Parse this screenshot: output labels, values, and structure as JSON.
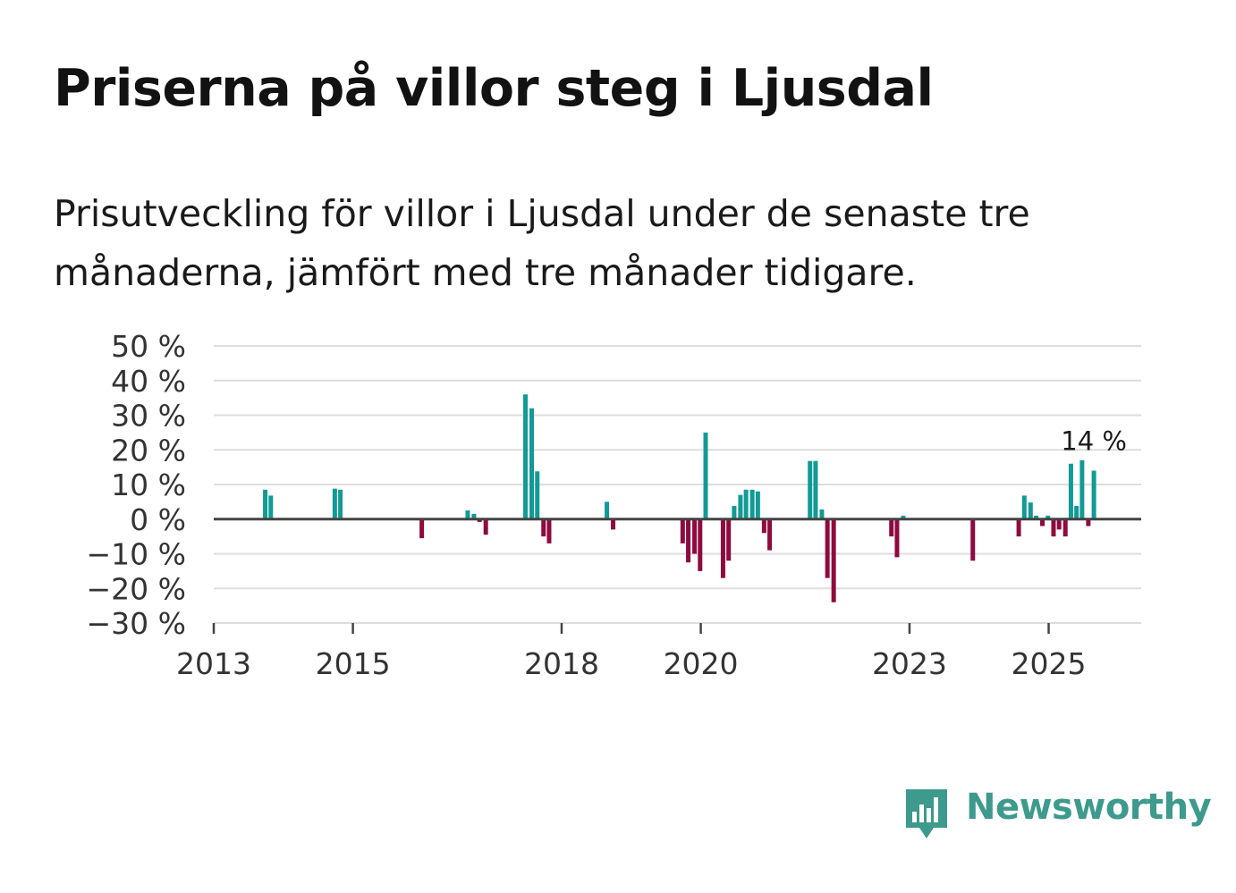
{
  "title": "Priserna på villor steg i Ljusdal",
  "subtitle": "Prisutveckling för villor i Ljusdal under de senaste tre månaderna, jämfört med tre månader tidigare.",
  "brand": {
    "name": "Newsworthy",
    "color": "#3d9a8c",
    "icon": "bar-chart-icon"
  },
  "colors": {
    "positive": "#129a96",
    "negative": "#8f0a3f",
    "grid": "#dddddd",
    "zero": "#444444"
  },
  "chart_data": {
    "type": "bar",
    "title": "Priserna på villor steg i Ljusdal",
    "xlabel": "",
    "ylabel": "",
    "ylim": [
      -30,
      50
    ],
    "xlim": [
      2013.0,
      2026.33
    ],
    "yticks": [
      {
        "value": 50,
        "label": "50 %"
      },
      {
        "value": 40,
        "label": "40 %"
      },
      {
        "value": 30,
        "label": "30 %"
      },
      {
        "value": 20,
        "label": "20 %"
      },
      {
        "value": 10,
        "label": "10 %"
      },
      {
        "value": 0,
        "label": "0 %"
      },
      {
        "value": -10,
        "label": "−10 %"
      },
      {
        "value": -20,
        "label": "−20 %"
      },
      {
        "value": -30,
        "label": "−30 %"
      }
    ],
    "xticks": [
      {
        "value": 2013,
        "label": "2013"
      },
      {
        "value": 2015,
        "label": "2015"
      },
      {
        "value": 2018,
        "label": "2018"
      },
      {
        "value": 2020,
        "label": "2020"
      },
      {
        "value": 2023,
        "label": "2023"
      },
      {
        "value": 2025,
        "label": "2025"
      }
    ],
    "series": [
      {
        "name": "Prisutveckling",
        "points": [
          {
            "x": 2013.74,
            "y": 8.5
          },
          {
            "x": 2013.82,
            "y": 6.8
          },
          {
            "x": 2014.74,
            "y": 8.8
          },
          {
            "x": 2014.82,
            "y": 8.5
          },
          {
            "x": 2015.99,
            "y": -5.5
          },
          {
            "x": 2016.65,
            "y": 2.5
          },
          {
            "x": 2016.74,
            "y": 1.5
          },
          {
            "x": 2016.82,
            "y": -0.8
          },
          {
            "x": 2016.91,
            "y": -4.5
          },
          {
            "x": 2017.48,
            "y": 36.0
          },
          {
            "x": 2017.57,
            "y": 32.0
          },
          {
            "x": 2017.65,
            "y": 13.8
          },
          {
            "x": 2017.74,
            "y": -5.0
          },
          {
            "x": 2017.82,
            "y": -7.0
          },
          {
            "x": 2018.65,
            "y": 5.0
          },
          {
            "x": 2018.74,
            "y": -3.0
          },
          {
            "x": 2019.74,
            "y": -7.0
          },
          {
            "x": 2019.82,
            "y": -12.5
          },
          {
            "x": 2019.91,
            "y": -10.0
          },
          {
            "x": 2019.99,
            "y": -15.0
          },
          {
            "x": 2020.07,
            "y": 25.0
          },
          {
            "x": 2020.32,
            "y": -17.0
          },
          {
            "x": 2020.4,
            "y": -12.0
          },
          {
            "x": 2020.48,
            "y": 3.8
          },
          {
            "x": 2020.57,
            "y": 7.0
          },
          {
            "x": 2020.65,
            "y": 8.5
          },
          {
            "x": 2020.74,
            "y": 8.5
          },
          {
            "x": 2020.82,
            "y": 8.0
          },
          {
            "x": 2020.91,
            "y": -4.0
          },
          {
            "x": 2020.99,
            "y": -9.0
          },
          {
            "x": 2021.57,
            "y": 16.8
          },
          {
            "x": 2021.65,
            "y": 16.8
          },
          {
            "x": 2021.74,
            "y": 2.8
          },
          {
            "x": 2021.82,
            "y": -17.0
          },
          {
            "x": 2021.91,
            "y": -24.0
          },
          {
            "x": 2022.74,
            "y": -5.0
          },
          {
            "x": 2022.82,
            "y": -11.0
          },
          {
            "x": 2022.91,
            "y": 1.0
          },
          {
            "x": 2023.91,
            "y": -12.0
          },
          {
            "x": 2024.57,
            "y": -5.0
          },
          {
            "x": 2024.65,
            "y": 6.8
          },
          {
            "x": 2024.74,
            "y": 4.8
          },
          {
            "x": 2024.82,
            "y": 1.0
          },
          {
            "x": 2024.91,
            "y": -2.0
          },
          {
            "x": 2024.99,
            "y": 1.0
          },
          {
            "x": 2025.07,
            "y": -5.0
          },
          {
            "x": 2025.15,
            "y": -3.0
          },
          {
            "x": 2025.24,
            "y": -5.0
          },
          {
            "x": 2025.32,
            "y": 16.0
          },
          {
            "x": 2025.4,
            "y": 3.8
          },
          {
            "x": 2025.48,
            "y": 17.0
          },
          {
            "x": 2025.57,
            "y": -2.0
          },
          {
            "x": 2025.65,
            "y": 14.0
          }
        ]
      }
    ],
    "annotations": [
      {
        "x": 2025.65,
        "y": 14.0,
        "text": "14 %"
      }
    ]
  }
}
